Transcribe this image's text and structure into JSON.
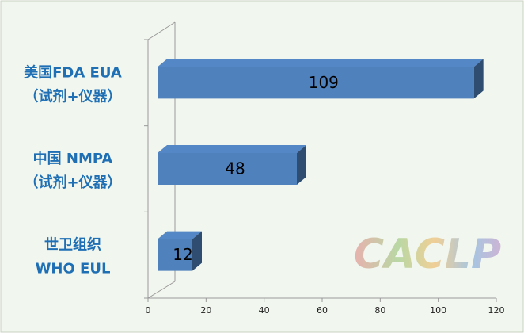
{
  "watermark": "CACLP",
  "chart_data": {
    "type": "bar3d",
    "orientation": "horizontal",
    "categories": [
      [
        "美国FDA EUA",
        "（试剂+仪器）"
      ],
      [
        "中国  NMPA",
        "（试剂+仪器）"
      ],
      [
        "世卫组织",
        "WHO EUL"
      ]
    ],
    "values": [
      109,
      48,
      12
    ],
    "color": "#4f81bd",
    "xlim": [
      0,
      120
    ],
    "xticks": [
      0,
      20,
      40,
      60,
      80,
      100,
      120
    ]
  }
}
